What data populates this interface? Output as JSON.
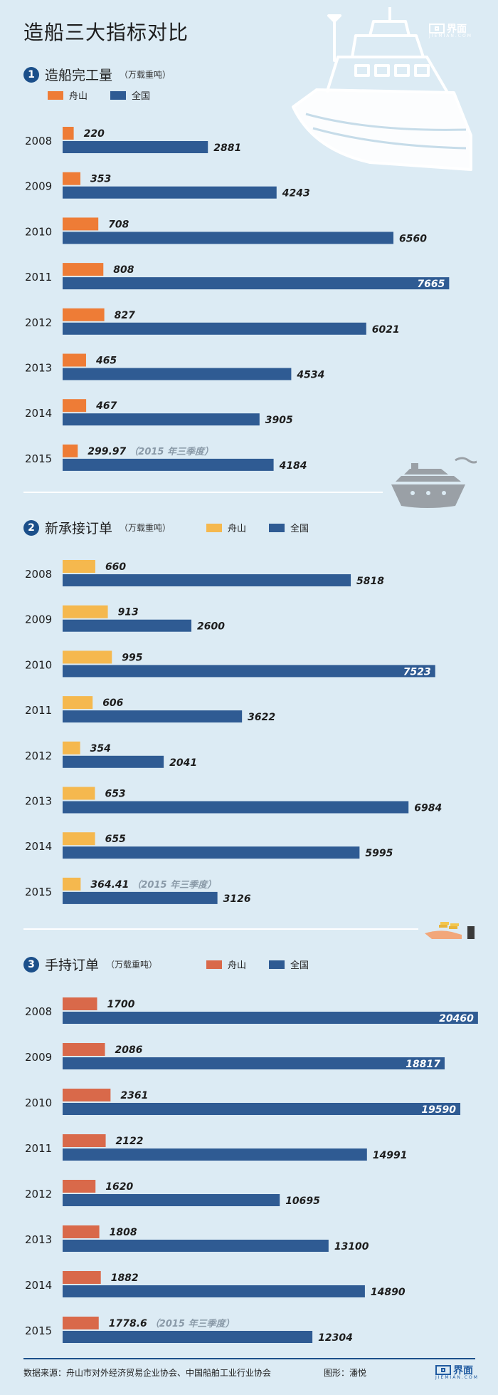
{
  "title": "造船三大指标对比",
  "brand": {
    "name": "界面",
    "sub": "JIEMIAN.COM"
  },
  "colors": {
    "national": "#2f5b93",
    "background": "#dcebf4"
  },
  "chart_data": [
    {
      "type": "bar",
      "index": "1",
      "title": "造船完工量",
      "unit": "（万载重吨）",
      "categories": [
        "2008",
        "2009",
        "2010",
        "2011",
        "2012",
        "2013",
        "2014",
        "2015"
      ],
      "series": [
        {
          "name": "舟山",
          "color": "#ee7c36",
          "values": [
            220,
            353,
            708,
            808,
            827,
            465,
            467,
            299.97
          ]
        },
        {
          "name": "全国",
          "color": "#2f5b93",
          "values": [
            2881,
            4243,
            6560,
            7665,
            6021,
            4534,
            3905,
            4184
          ]
        }
      ],
      "labels_zhoushan": [
        "220",
        "353",
        "708",
        "808",
        "827",
        "465",
        "467",
        "299.97"
      ],
      "labels_national": [
        "2881",
        "4243",
        "6560",
        "7665",
        "6021",
        "4534",
        "3905",
        "4184"
      ],
      "annotation": "（2015 年三季度）",
      "xlim": [
        0,
        7900
      ]
    },
    {
      "type": "bar",
      "index": "2",
      "title": "新承接订单",
      "unit": "（万载重吨）",
      "categories": [
        "2008",
        "2009",
        "2010",
        "2011",
        "2012",
        "2013",
        "2014",
        "2015"
      ],
      "series": [
        {
          "name": "舟山",
          "color": "#f5b84e",
          "values": [
            660,
            913,
            995,
            606,
            354,
            653,
            655,
            364.41
          ]
        },
        {
          "name": "全国",
          "color": "#2f5b93",
          "values": [
            5818,
            2600,
            7523,
            3622,
            2041,
            6984,
            5995,
            3126
          ]
        }
      ],
      "labels_zhoushan": [
        "660",
        "913",
        "995",
        "606",
        "354",
        "653",
        "655",
        "364.41"
      ],
      "labels_national": [
        "5818",
        "2600",
        "7523",
        "3622",
        "2041",
        "6984",
        "5995",
        "3126"
      ],
      "annotation": "（2015 年三季度）",
      "xlim": [
        0,
        7900
      ]
    },
    {
      "type": "bar",
      "index": "3",
      "title": "手持订单",
      "unit": "（万载重吨）",
      "categories": [
        "2008",
        "2009",
        "2010",
        "2011",
        "2012",
        "2013",
        "2014",
        "2015"
      ],
      "series": [
        {
          "name": "舟山",
          "color": "#d9694a",
          "values": [
            1700,
            2086,
            2361,
            2122,
            1620,
            1808,
            1882,
            1778.6
          ]
        },
        {
          "name": "全国",
          "color": "#2f5b93",
          "values": [
            20460,
            18817,
            19590,
            14991,
            10695,
            13100,
            14890,
            12304
          ]
        }
      ],
      "labels_zhoushan": [
        "1700",
        "2086",
        "2361",
        "2122",
        "1620",
        "1808",
        "1882",
        "1778.6"
      ],
      "labels_national": [
        "20460",
        "18817",
        "19590",
        "14991",
        "10695",
        "13100",
        "14890",
        "12304"
      ],
      "annotation": "（2015 年三季度）",
      "xlim": [
        0,
        20500
      ]
    }
  ],
  "footer": {
    "source": "数据来源：舟山市对外经济贸易企业协会、中国船舶工业行业协会",
    "credit": "图形：潘悦"
  }
}
